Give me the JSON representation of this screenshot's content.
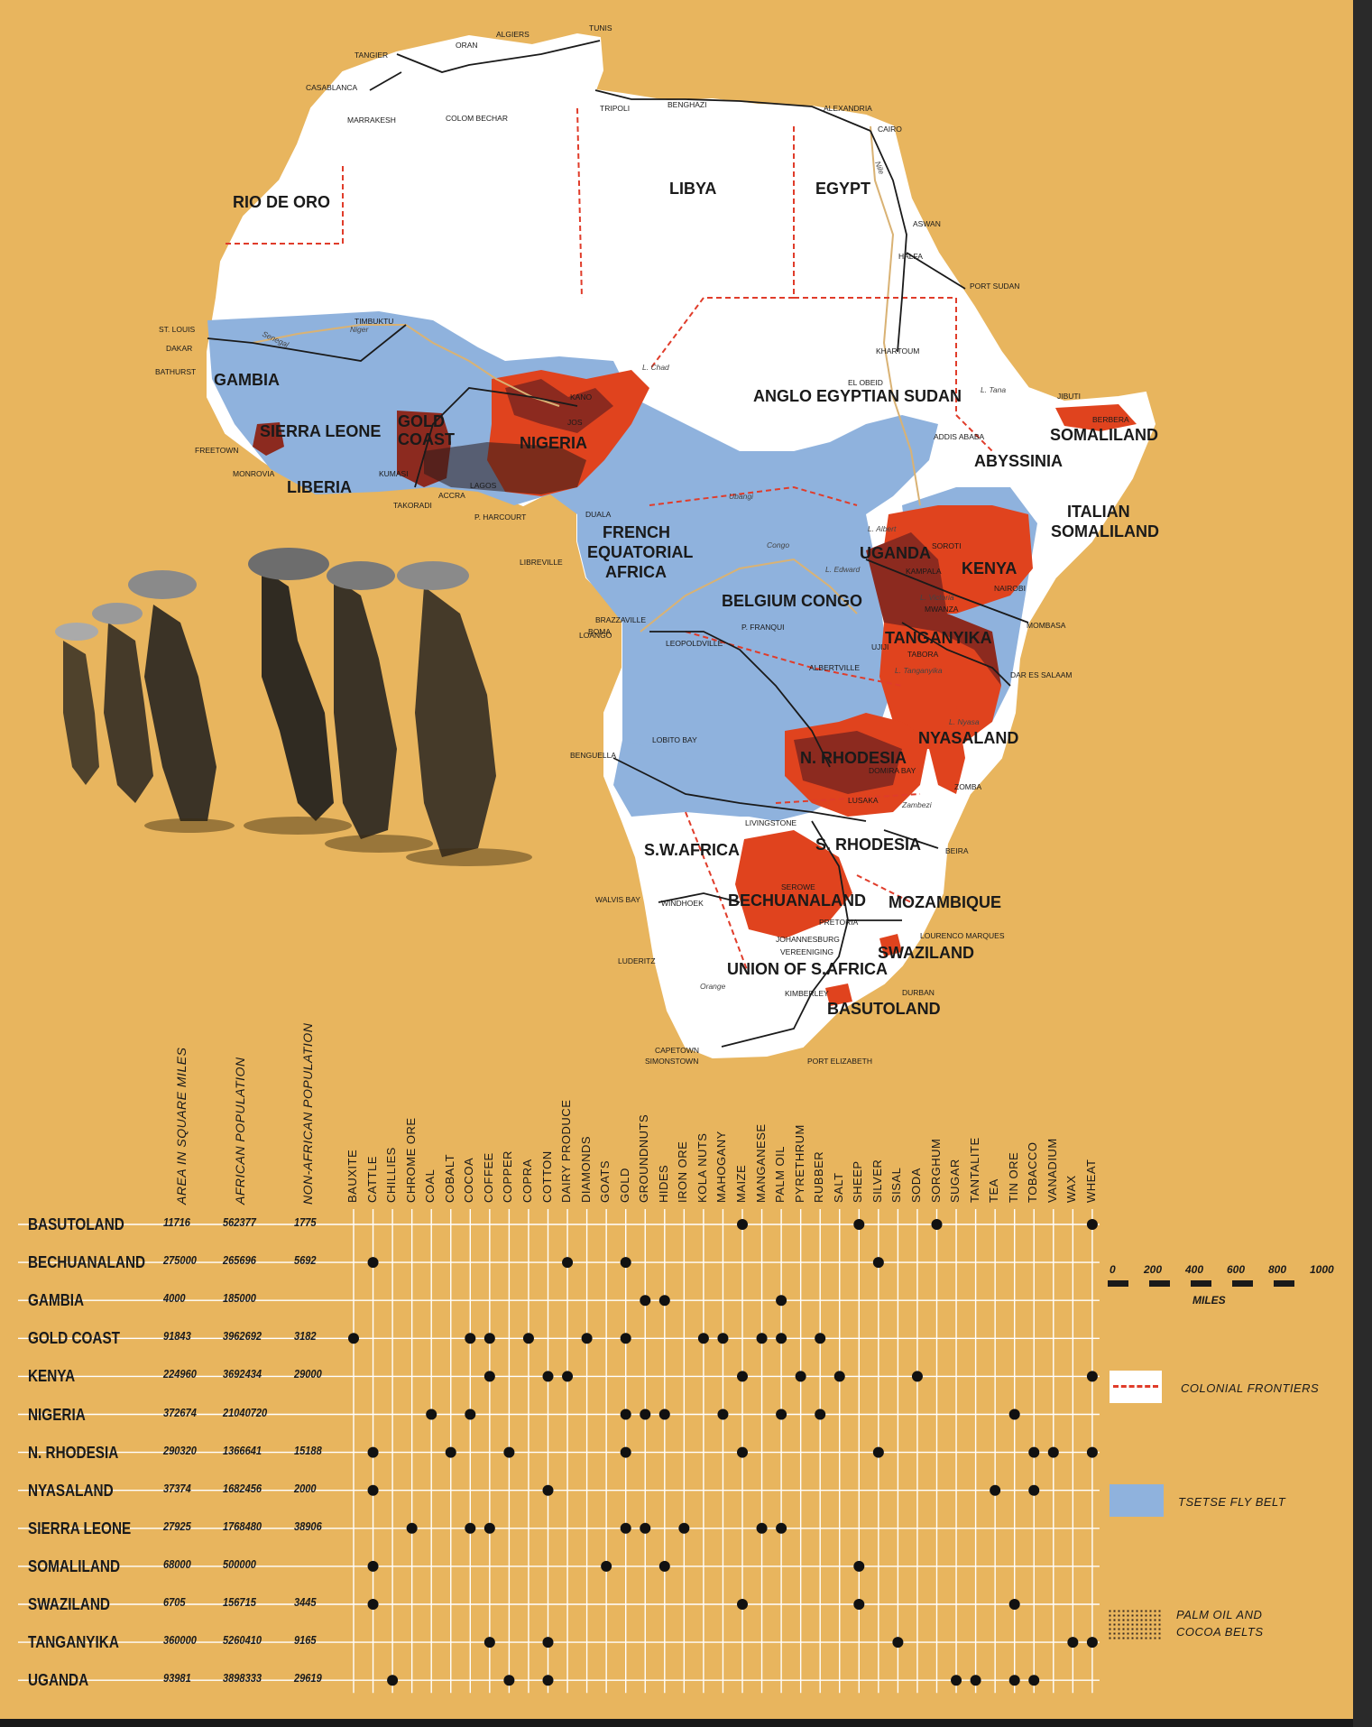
{
  "map": {
    "countries": [
      "RIO DE ORO",
      "LIBYA",
      "EGYPT",
      "GAMBIA",
      "SIERRA LEONE",
      "GOLD",
      "COAST",
      "NIGERIA",
      "LIBERIA",
      "ANGLO EGYPTIAN SUDAN",
      "SOMALILAND",
      "ABYSSINIA",
      "ITALIAN",
      "SOMALILAND",
      "FRENCH",
      "EQUATORIAL",
      "AFRICA",
      "UGANDA",
      "KENYA",
      "BELGIUM CONGO",
      "TANGANYIKA",
      "NYASALAND",
      "N. RHODESIA",
      "S.W.AFRICA",
      "S. RHODESIA",
      "BECHUANALAND",
      "MOZAMBIQUE",
      "SWAZILAND",
      "UNION OF S.AFRICA",
      "BASUTOLAND"
    ],
    "cities": [
      "TANGIER",
      "ORAN",
      "ALGIERS",
      "TUNIS",
      "CASABLANCA",
      "MARRAKESH",
      "COLOM BECHAR",
      "TRIPOLI",
      "BENGHAZI",
      "ALEXANDRIA",
      "CAIRO",
      "ASWAN",
      "HALFA",
      "PORT SUDAN",
      "KHARTOUM",
      "EL OBEID",
      "JIBUTI",
      "BERBERA",
      "ADDIS ABABA",
      "TIMBUKTU",
      "ST. LOUIS",
      "DAKAR",
      "BATHURST",
      "FREETOWN",
      "MONROVIA",
      "KANO",
      "JOS",
      "KUMASI",
      "LAGOS",
      "ACCRA",
      "TAKORADI",
      "P. HARCOURT",
      "DUALA",
      "LIBREVILLE",
      "BRAZZAVILLE",
      "LEOPOLDVILLE",
      "LOANGO",
      "BOMA",
      "P. FRANQUI",
      "ALBERTVILLE",
      "UJIJI",
      "TABORA",
      "MWANZA",
      "KAMPALA",
      "NAIROBI",
      "MOMBASA",
      "DAR ES SALAAM",
      "SOROTI",
      "LOBITO BAY",
      "BENGUELLA",
      "LIVINGSTONE",
      "LUSAKA",
      "DOMIRA BAY",
      "ZOMBA",
      "BEIRA",
      "WALVIS BAY",
      "WINDHOEK",
      "SEROWE",
      "PRETORIA",
      "JOHANNESBURG",
      "VEREENIGING",
      "LOURENCO MARQUES",
      "LUDERITZ",
      "KIMBERLEY",
      "DURBAN",
      "CAPETOWN",
      "SIMONSTOWN",
      "PORT ELIZABETH"
    ],
    "water": [
      "Senegal",
      "Niger",
      "L. Chad",
      "Ubangi",
      "Congo",
      "L. Albert",
      "L. Edward",
      "L. Victoria",
      "L. Tanganyika",
      "L. Nyasa",
      "Zambezi",
      "Orange",
      "Nile",
      "L. Tana"
    ]
  },
  "table": {
    "stat_headers": [
      "AREA IN SQUARE MILES",
      "AFRICAN POPULATION",
      "NON-AFRICAN POPULATION"
    ],
    "products": [
      "BAUXITE",
      "CATTLE",
      "CHILLIES",
      "CHROME ORE",
      "COAL",
      "COBALT",
      "COCOA",
      "COFFEE",
      "COPPER",
      "COPRA",
      "COTTON",
      "DAIRY PRODUCE",
      "DIAMONDS",
      "GOATS",
      "GOLD",
      "GROUNDNUTS",
      "HIDES",
      "IRON ORE",
      "KOLA NUTS",
      "MAHOGANY",
      "MAIZE",
      "MANGANESE",
      "PALM OIL",
      "PYRETHRUM",
      "RUBBER",
      "SALT",
      "SHEEP",
      "SILVER",
      "SISAL",
      "SODA",
      "SORGHUM",
      "SUGAR",
      "TANTALITE",
      "TEA",
      "TIN ORE",
      "TOBACCO",
      "VANADIUM",
      "WAX",
      "WHEAT"
    ],
    "rows": [
      {
        "name": "BASUTOLAND",
        "area": "11716",
        "african": "562377",
        "non_african": "1775",
        "products": [
          "MAIZE",
          "SHEEP",
          "SORGHUM",
          "WHEAT"
        ]
      },
      {
        "name": "BECHUANALAND",
        "area": "275000",
        "african": "265696",
        "non_african": "5692",
        "products": [
          "CATTLE",
          "DAIRY PRODUCE",
          "GOLD",
          "SILVER"
        ]
      },
      {
        "name": "GAMBIA",
        "area": "4000",
        "african": "185000",
        "non_african": "",
        "products": [
          "GROUNDNUTS",
          "HIDES",
          "PALM OIL"
        ]
      },
      {
        "name": "GOLD COAST",
        "area": "91843",
        "african": "3962692",
        "non_african": "3182",
        "products": [
          "BAUXITE",
          "COCOA",
          "COFFEE",
          "COPRA",
          "DIAMONDS",
          "GOLD",
          "KOLA NUTS",
          "MAHOGANY",
          "MANGANESE",
          "PALM OIL",
          "RUBBER"
        ]
      },
      {
        "name": "KENYA",
        "area": "224960",
        "african": "3692434",
        "non_african": "29000",
        "products": [
          "COFFEE",
          "COTTON",
          "DAIRY PRODUCE",
          "MAIZE",
          "PYRETHRUM",
          "SALT",
          "SODA",
          "WHEAT"
        ]
      },
      {
        "name": "NIGERIA",
        "area": "372674",
        "african": "21040720",
        "non_african": "",
        "products": [
          "COAL",
          "COCOA",
          "GOLD",
          "GROUNDNUTS",
          "HIDES",
          "MAHOGANY",
          "PALM OIL",
          "RUBBER",
          "TIN ORE"
        ]
      },
      {
        "name": "N. RHODESIA",
        "area": "290320",
        "african": "1366641",
        "non_african": "15188",
        "products": [
          "CATTLE",
          "COBALT",
          "COPPER",
          "GOLD",
          "MAIZE",
          "SILVER",
          "TOBACCO",
          "VANADIUM",
          "WHEAT"
        ]
      },
      {
        "name": "NYASALAND",
        "area": "37374",
        "african": "1682456",
        "non_african": "2000",
        "products": [
          "CATTLE",
          "COTTON",
          "TEA",
          "TOBACCO"
        ]
      },
      {
        "name": "SIERRA LEONE",
        "area": "27925",
        "african": "1768480",
        "non_african": "38906",
        "products": [
          "CHROME ORE",
          "COCOA",
          "COFFEE",
          "GOLD",
          "GROUNDNUTS",
          "IRON ORE",
          "MANGANESE",
          "PALM OIL"
        ]
      },
      {
        "name": "SOMALILAND",
        "area": "68000",
        "african": "500000",
        "non_african": "",
        "products": [
          "CATTLE",
          "GOATS",
          "HIDES",
          "SHEEP"
        ]
      },
      {
        "name": "SWAZILAND",
        "area": "6705",
        "african": "156715",
        "non_african": "3445",
        "products": [
          "CATTLE",
          "MAIZE",
          "SHEEP",
          "TIN ORE"
        ]
      },
      {
        "name": "TANGANYIKA",
        "area": "360000",
        "african": "5260410",
        "non_african": "9165",
        "products": [
          "COFFEE",
          "COTTON",
          "SISAL",
          "WAX",
          "WHEAT"
        ]
      },
      {
        "name": "UGANDA",
        "area": "93981",
        "african": "3898333",
        "non_african": "29619",
        "products": [
          "CHILLIES",
          "COPPER",
          "COTTON",
          "SUGAR",
          "TANTALITE",
          "TIN ORE",
          "TOBACCO"
        ]
      }
    ]
  },
  "legend": {
    "scale_ticks": [
      "0",
      "200",
      "400",
      "600",
      "800",
      "1000"
    ],
    "scale_unit": "MILES",
    "frontiers": "COLONIAL FRONTIERS",
    "tsetse": "TSETSE FLY BELT",
    "palm_line1": "PALM OIL AND",
    "palm_line2": "COCOA BELTS"
  },
  "colors": {
    "background": "#e8b55e",
    "land": "#ffffff",
    "tsetse": "#8fb2dd",
    "red": "#e0431e",
    "dark_red": "#8c2a1f",
    "grid": "#ffffff",
    "frontier": "#e03c2a"
  }
}
